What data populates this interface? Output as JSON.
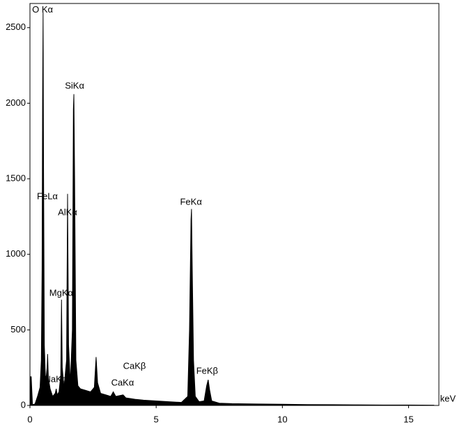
{
  "chart_data": {
    "type": "area",
    "x_label": "keV",
    "color": "#000000",
    "xlim": [
      0,
      16.2
    ],
    "ylim": [
      0,
      2660
    ],
    "xticks": [
      0,
      5,
      10,
      15
    ],
    "yticks": [
      0,
      500,
      1000,
      1500,
      2000,
      2500
    ],
    "x": [
      0,
      0.05,
      0.1,
      0.2,
      0.3,
      0.4,
      0.45,
      0.48,
      0.5,
      0.52,
      0.54,
      0.57,
      0.62,
      0.68,
      0.7,
      0.73,
      0.8,
      0.9,
      1.0,
      1.04,
      1.08,
      1.15,
      1.22,
      1.25,
      1.28,
      1.35,
      1.45,
      1.49,
      1.53,
      1.6,
      1.68,
      1.72,
      1.74,
      1.77,
      1.82,
      1.9,
      2.0,
      2.2,
      2.4,
      2.55,
      2.62,
      2.68,
      2.8,
      3.0,
      3.2,
      3.3,
      3.4,
      3.69,
      3.8,
      4.01,
      4.2,
      4.5,
      5.0,
      5.5,
      6.0,
      6.25,
      6.32,
      6.38,
      6.4,
      6.43,
      6.48,
      6.55,
      6.7,
      6.9,
      7.0,
      7.06,
      7.12,
      7.2,
      7.5,
      8,
      9,
      10,
      11,
      12,
      13,
      14,
      15,
      16
    ],
    "values": [
      190,
      190,
      5,
      10,
      60,
      120,
      300,
      900,
      2020,
      2600,
      1560,
      400,
      150,
      250,
      340,
      180,
      110,
      60,
      80,
      110,
      70,
      90,
      200,
      700,
      250,
      120,
      300,
      1400,
      400,
      150,
      500,
      1960,
      2060,
      1500,
      300,
      130,
      110,
      100,
      90,
      120,
      320,
      150,
      80,
      70,
      60,
      90,
      60,
      70,
      50,
      45,
      40,
      35,
      30,
      25,
      20,
      60,
      500,
      1230,
      1300,
      900,
      300,
      60,
      25,
      30,
      130,
      170,
      100,
      30,
      15,
      12,
      10,
      8,
      6,
      5,
      4,
      3,
      3,
      2
    ],
    "annotations": [
      {
        "text": "O Kα",
        "x": 0.5,
        "y": 2615
      },
      {
        "text": "SiKα",
        "x": 1.77,
        "y": 2113
      },
      {
        "text": "FeLα",
        "x": 0.69,
        "y": 1381
      },
      {
        "text": "AlKα",
        "x": 1.49,
        "y": 1275
      },
      {
        "text": "MgKα",
        "x": 1.24,
        "y": 741
      },
      {
        "text": "NaKα",
        "x": 1.02,
        "y": 170
      },
      {
        "text": "CaKα",
        "x": 3.67,
        "y": 147
      },
      {
        "text": "CaKβ",
        "x": 4.14,
        "y": 258
      },
      {
        "text": "FeKα",
        "x": 6.38,
        "y": 1344
      },
      {
        "text": "FeKβ",
        "x": 7.02,
        "y": 226
      }
    ]
  }
}
